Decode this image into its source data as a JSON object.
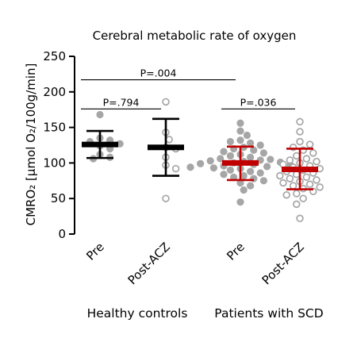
{
  "chart_data": {
    "type": "scatter",
    "title": "Cerebral metabolic rate of oxygen",
    "ylabel": "CMRO₂ [μmol O₂/100g/min]",
    "ylim": [
      0,
      250
    ],
    "yticks": [
      "0",
      "50",
      "100",
      "150",
      "200",
      "250"
    ],
    "ytick_values": [
      0,
      50,
      100,
      150,
      200,
      250
    ],
    "categories": [
      "Pre",
      "Post-ACZ",
      "Pre",
      "Post-ACZ"
    ],
    "groups": [
      {
        "label": "Healthy controls",
        "members": [
          0,
          1
        ]
      },
      {
        "label": "Patients with SCD",
        "members": [
          2,
          3
        ]
      }
    ],
    "series": [
      {
        "category": "Pre",
        "group": "Healthy controls",
        "marker": "filled",
        "color": "#a6a6a6",
        "mean_color": "#000000",
        "mean": 126,
        "sd_low": 107,
        "sd_high": 145,
        "points": [
          168,
          135,
          132,
          130,
          127,
          124,
          120,
          112,
          108,
          106
        ]
      },
      {
        "category": "Post-ACZ",
        "group": "Healthy controls",
        "marker": "open",
        "color": "#a6a6a6",
        "mean_color": "#000000",
        "mean": 122,
        "sd_low": 82,
        "sd_high": 162,
        "points": [
          186,
          143,
          133,
          122,
          120,
          108,
          97,
          92,
          50
        ]
      },
      {
        "category": "Pre",
        "group": "Patients with SCD",
        "marker": "filled",
        "color": "#a6a6a6",
        "mean_color": "#c00000",
        "mean": 100,
        "sd_low": 76,
        "sd_high": 123,
        "points": [
          156,
          145,
          139,
          132,
          130,
          128,
          125,
          122,
          120,
          118,
          116,
          114,
          112,
          110,
          108,
          106,
          105,
          104,
          103,
          102,
          101,
          100,
          99,
          98,
          97,
          96,
          95,
          94,
          93,
          92,
          90,
          88,
          86,
          84,
          82,
          80,
          78,
          75,
          72,
          68,
          62,
          45
        ]
      },
      {
        "category": "Post-ACZ",
        "group": "Patients with SCD",
        "marker": "open",
        "color": "#a6a6a6",
        "mean_color": "#c00000",
        "mean": 91,
        "sd_low": 63,
        "sd_high": 120,
        "points": [
          158,
          144,
          130,
          126,
          122,
          118,
          114,
          110,
          106,
          104,
          102,
          100,
          98,
          96,
          94,
          92,
          90,
          88,
          86,
          84,
          82,
          80,
          78,
          76,
          74,
          72,
          70,
          68,
          66,
          64,
          60,
          57,
          55,
          50,
          42,
          22
        ]
      }
    ],
    "comparisons": [
      {
        "label": "P=.004",
        "from": 0,
        "to": 2,
        "y": 217
      },
      {
        "label": "P=.794",
        "from": 0,
        "to": 1,
        "y": 176
      },
      {
        "label": "P=.036",
        "from": 2,
        "to": 3,
        "y": 176
      }
    ],
    "grid": false,
    "legend": "none"
  }
}
